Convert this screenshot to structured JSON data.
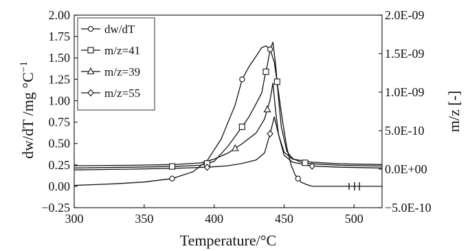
{
  "chart_data": {
    "type": "line",
    "xlabel": "Temperature/°C",
    "ylabel": "dw/dT /mg °C",
    "ylabel_superscript": "−1",
    "y2label": "m/z [-]",
    "xlim": [
      300,
      520
    ],
    "ylim": [
      -0.25,
      2.0
    ],
    "y2lim": [
      -5e-10,
      2e-09
    ],
    "xticks": [
      300,
      350,
      400,
      450,
      500
    ],
    "xtick_labels": [
      "300",
      "350",
      "400",
      "450",
      "500"
    ],
    "yticks": [
      -0.25,
      0.0,
      0.25,
      0.5,
      0.75,
      1.0,
      1.25,
      1.5,
      1.75,
      2.0
    ],
    "ytick_labels": [
      "−0.25",
      "0.00",
      "0.25",
      "0.50",
      "0.75",
      "1.00",
      "1.25",
      "1.50",
      "1.75",
      "2.00"
    ],
    "y2ticks": [
      -5e-10,
      0,
      5e-10,
      1e-09,
      1.5e-09,
      2e-09
    ],
    "y2tick_labels": [
      "−5.0E-10",
      "0.0E+00",
      "5.0E-10",
      "1.0E-09",
      "1.5E-09",
      "2.0E-09"
    ],
    "grid": false,
    "legend_position": "top-left",
    "series": [
      {
        "name": "dw/dT",
        "axis": "left",
        "marker": "circle",
        "x": [
          300,
          330,
          350,
          370,
          385,
          395,
          405,
          415,
          420,
          425,
          430,
          434,
          437,
          440,
          443,
          446,
          449,
          452,
          455,
          458,
          462,
          466,
          470,
          500,
          520
        ],
        "y": [
          0.01,
          0.03,
          0.05,
          0.09,
          0.17,
          0.3,
          0.55,
          0.95,
          1.25,
          1.4,
          1.52,
          1.62,
          1.64,
          1.6,
          1.45,
          1.1,
          0.75,
          0.45,
          0.25,
          0.13,
          0.05,
          0.02,
          0.0,
          0.0,
          0.0
        ],
        "marker_x": [
          370,
          420,
          440,
          460
        ]
      },
      {
        "name": "m/z=41",
        "axis": "right",
        "marker": "square",
        "x": [
          300,
          340,
          370,
          390,
          400,
          410,
          420,
          425,
          430,
          434,
          436,
          438,
          440,
          442,
          444,
          446,
          448,
          452,
          456,
          462,
          470,
          490,
          520
        ],
        "y": [
          1.5e-11,
          2.5e-11,
          3.5e-11,
          5e-11,
          1e-10,
          3e-10,
          5.5e-10,
          6.8e-10,
          8.5e-10,
          9.9e-10,
          1.18e-09,
          1.35e-09,
          1.55e-09,
          1.65e-09,
          1.35e-09,
          9.2e-10,
          5.5e-10,
          2.3e-10,
          1.4e-10,
          9e-11,
          7e-11,
          5e-11,
          4e-11
        ],
        "marker_x": [
          370,
          395,
          420,
          437,
          445,
          465
        ]
      },
      {
        "name": "m/z=39",
        "axis": "right",
        "marker": "triangle",
        "x": [
          300,
          340,
          370,
          390,
          400,
          410,
          420,
          430,
          436,
          440,
          442,
          444,
          446,
          450,
          456,
          470,
          490,
          520
        ],
        "y": [
          4.5e-11,
          5e-11,
          6e-11,
          8e-11,
          1.3e-10,
          2.1e-10,
          3.3e-10,
          4.7e-10,
          6.5e-10,
          9e-10,
          1.12e-09,
          7.5e-10,
          4.5e-10,
          2.2e-10,
          1.3e-10,
          9e-11,
          7e-11,
          6e-11
        ],
        "marker_x": [
          415,
          438
        ]
      },
      {
        "name": "m/z=55",
        "axis": "right",
        "marker": "diamond",
        "x": [
          300,
          340,
          370,
          395,
          410,
          420,
          430,
          436,
          440,
          443,
          446,
          450,
          456,
          470,
          490,
          520
        ],
        "y": [
          -1e-11,
          0,
          1e-11,
          2.5e-11,
          4.5e-11,
          7.5e-11,
          1.2e-10,
          2.1e-10,
          4.6e-10,
          6.8e-10,
          4.5e-10,
          1.8e-10,
          9e-11,
          4e-11,
          2.5e-11,
          1.5e-11
        ],
        "marker_x": [
          395,
          440,
          470
        ]
      }
    ]
  }
}
